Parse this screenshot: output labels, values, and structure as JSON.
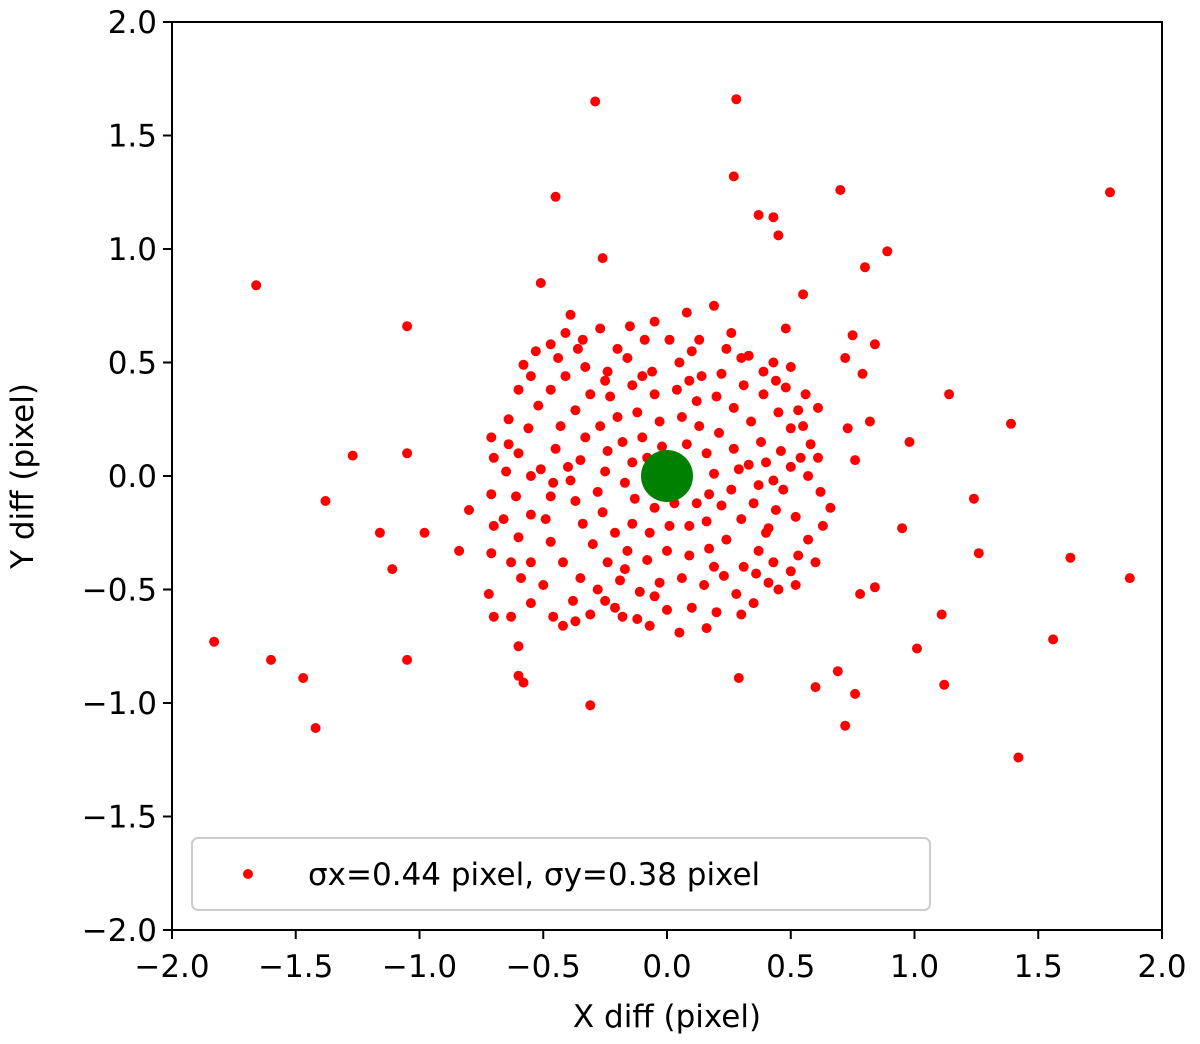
{
  "chart_data": {
    "type": "scatter",
    "title": "",
    "xlabel": "X diff (pixel)",
    "ylabel": "Y diff (pixel)",
    "xlim": [
      -2.0,
      2.0
    ],
    "ylim": [
      -2.0,
      2.0
    ],
    "xticks": [
      -2.0,
      -1.5,
      -1.0,
      -0.5,
      0.0,
      0.5,
      1.0,
      1.5,
      2.0
    ],
    "yticks": [
      -2.0,
      -1.5,
      -1.0,
      -0.5,
      0.0,
      0.5,
      1.0,
      1.5,
      2.0
    ],
    "xtick_labels": [
      "−2.0",
      "−1.5",
      "−1.0",
      "−0.5",
      "0.0",
      "0.5",
      "1.0",
      "1.5",
      "2.0"
    ],
    "ytick_labels": [
      "−2.0",
      "−1.5",
      "−1.0",
      "−0.5",
      "0.0",
      "0.5",
      "1.0",
      "1.5",
      "2.0"
    ],
    "grid": false,
    "legend_position": "lower-left",
    "series": [
      {
        "name": "σx=0.44 pixel, σy=0.38 pixel",
        "color": "#ff0000",
        "marker": "circle",
        "points": [
          [
            -0.29,
            1.65
          ],
          [
            0.28,
            1.66
          ],
          [
            -0.45,
            1.23
          ],
          [
            0.27,
            1.32
          ],
          [
            0.7,
            1.26
          ],
          [
            1.79,
            1.25
          ],
          [
            0.37,
            1.15
          ],
          [
            0.43,
            1.14
          ],
          [
            0.45,
            1.06
          ],
          [
            0.89,
            0.99
          ],
          [
            -0.26,
            0.96
          ],
          [
            0.8,
            0.92
          ],
          [
            -1.66,
            0.84
          ],
          [
            -0.51,
            0.85
          ],
          [
            0.55,
            0.8
          ],
          [
            0.19,
            0.75
          ],
          [
            0.08,
            0.72
          ],
          [
            -0.39,
            0.71
          ],
          [
            -0.05,
            0.68
          ],
          [
            0.48,
            0.65
          ],
          [
            0.26,
            0.63
          ],
          [
            0.75,
            0.62
          ],
          [
            -1.05,
            0.66
          ],
          [
            0.84,
            0.58
          ],
          [
            0.72,
            0.52
          ],
          [
            0.79,
            0.45
          ],
          [
            1.14,
            0.36
          ],
          [
            0.82,
            0.24
          ],
          [
            0.73,
            0.21
          ],
          [
            1.39,
            0.23
          ],
          [
            0.98,
            0.15
          ],
          [
            0.76,
            0.07
          ],
          [
            1.24,
            -0.1
          ],
          [
            0.95,
            -0.23
          ],
          [
            1.26,
            -0.34
          ],
          [
            1.63,
            -0.36
          ],
          [
            1.87,
            -0.45
          ],
          [
            0.84,
            -0.49
          ],
          [
            0.78,
            -0.52
          ],
          [
            1.11,
            -0.61
          ],
          [
            1.56,
            -0.72
          ],
          [
            1.01,
            -0.76
          ],
          [
            0.69,
            -0.86
          ],
          [
            0.6,
            -0.93
          ],
          [
            0.76,
            -0.96
          ],
          [
            1.12,
            -0.92
          ],
          [
            0.72,
            -1.1
          ],
          [
            1.42,
            -1.24
          ],
          [
            -1.27,
            0.09
          ],
          [
            -1.05,
            0.1
          ],
          [
            -1.38,
            -0.11
          ],
          [
            -1.16,
            -0.25
          ],
          [
            -0.98,
            -0.25
          ],
          [
            -1.11,
            -0.41
          ],
          [
            -0.84,
            -0.33
          ],
          [
            -0.8,
            -0.15
          ],
          [
            -1.83,
            -0.73
          ],
          [
            -1.6,
            -0.81
          ],
          [
            -1.47,
            -0.89
          ],
          [
            -1.42,
            -1.11
          ],
          [
            -1.05,
            -0.81
          ],
          [
            -0.31,
            -1.01
          ],
          [
            0.29,
            -0.89
          ],
          [
            -0.58,
            -0.91
          ],
          [
            -0.6,
            -0.88
          ],
          [
            -0.6,
            -0.75
          ],
          [
            -0.63,
            -0.62
          ],
          [
            -0.7,
            -0.62
          ],
          [
            -0.72,
            -0.52
          ],
          [
            -0.71,
            -0.34
          ],
          [
            -0.7,
            -0.22
          ],
          [
            -0.71,
            -0.08
          ],
          [
            -0.7,
            0.08
          ],
          [
            -0.71,
            0.17
          ],
          [
            -0.64,
            0.25
          ],
          [
            -0.6,
            0.38
          ],
          [
            -0.58,
            0.49
          ],
          [
            -0.53,
            0.55
          ],
          [
            -0.47,
            0.58
          ],
          [
            -0.41,
            0.63
          ],
          [
            -0.34,
            0.6
          ],
          [
            -0.27,
            0.65
          ],
          [
            -0.15,
            0.66
          ],
          [
            -0.09,
            0.6
          ],
          [
            0.01,
            0.6
          ],
          [
            0.13,
            0.6
          ],
          [
            0.24,
            0.56
          ],
          [
            0.33,
            0.53
          ],
          [
            0.43,
            0.5
          ],
          [
            0.5,
            0.48
          ],
          [
            0.56,
            0.36
          ],
          [
            0.61,
            0.3
          ],
          [
            0.55,
            0.22
          ],
          [
            0.61,
            0.08
          ],
          [
            0.57,
            0.0
          ],
          [
            0.62,
            -0.07
          ],
          [
            0.52,
            -0.18
          ],
          [
            0.57,
            -0.28
          ],
          [
            0.53,
            -0.35
          ],
          [
            0.5,
            -0.42
          ],
          [
            0.45,
            -0.5
          ],
          [
            0.41,
            -0.47
          ],
          [
            0.35,
            -0.56
          ],
          [
            0.3,
            -0.61
          ],
          [
            0.2,
            -0.6
          ],
          [
            0.1,
            -0.58
          ],
          [
            0.0,
            -0.59
          ],
          [
            -0.05,
            -0.53
          ],
          [
            -0.12,
            -0.63
          ],
          [
            -0.21,
            -0.58
          ],
          [
            -0.31,
            -0.61
          ],
          [
            -0.37,
            -0.64
          ],
          [
            -0.46,
            -0.62
          ],
          [
            -0.55,
            -0.56
          ],
          [
            -0.59,
            -0.45
          ],
          [
            -0.55,
            -0.38
          ],
          [
            -0.6,
            -0.27
          ],
          [
            -0.55,
            -0.17
          ],
          [
            -0.61,
            -0.09
          ],
          [
            -0.55,
            0.0
          ],
          [
            -0.6,
            0.1
          ],
          [
            -0.56,
            0.21
          ],
          [
            -0.52,
            0.31
          ],
          [
            -0.47,
            0.38
          ],
          [
            -0.41,
            0.44
          ],
          [
            -0.33,
            0.48
          ],
          [
            -0.24,
            0.46
          ],
          [
            -0.16,
            0.52
          ],
          [
            -0.06,
            0.46
          ],
          [
            0.05,
            0.5
          ],
          [
            0.14,
            0.44
          ],
          [
            0.22,
            0.45
          ],
          [
            0.31,
            0.4
          ],
          [
            0.39,
            0.36
          ],
          [
            0.45,
            0.28
          ],
          [
            0.5,
            0.21
          ],
          [
            0.46,
            0.11
          ],
          [
            0.5,
            0.04
          ],
          [
            0.47,
            -0.06
          ],
          [
            0.44,
            -0.15
          ],
          [
            0.41,
            -0.23
          ],
          [
            0.37,
            -0.33
          ],
          [
            0.31,
            -0.4
          ],
          [
            0.23,
            -0.44
          ],
          [
            0.15,
            -0.48
          ],
          [
            0.06,
            -0.45
          ],
          [
            -0.03,
            -0.47
          ],
          [
            -0.11,
            -0.51
          ],
          [
            -0.19,
            -0.46
          ],
          [
            -0.28,
            -0.5
          ],
          [
            -0.35,
            -0.45
          ],
          [
            -0.42,
            -0.38
          ],
          [
            -0.47,
            -0.29
          ],
          [
            -0.49,
            -0.19
          ],
          [
            -0.47,
            -0.09
          ],
          [
            -0.51,
            0.03
          ],
          [
            -0.45,
            0.12
          ],
          [
            -0.43,
            0.22
          ],
          [
            -0.37,
            0.29
          ],
          [
            -0.31,
            0.36
          ],
          [
            -0.23,
            0.35
          ],
          [
            -0.14,
            0.4
          ],
          [
            -0.05,
            0.36
          ],
          [
            0.04,
            0.38
          ],
          [
            0.12,
            0.33
          ],
          [
            0.2,
            0.35
          ],
          [
            0.27,
            0.3
          ],
          [
            0.34,
            0.24
          ],
          [
            0.38,
            0.15
          ],
          [
            0.4,
            0.06
          ],
          [
            0.37,
            -0.04
          ],
          [
            0.35,
            -0.12
          ],
          [
            0.3,
            -0.19
          ],
          [
            0.24,
            -0.28
          ],
          [
            0.17,
            -0.32
          ],
          [
            0.09,
            -0.35
          ],
          [
            0.0,
            -0.33
          ],
          [
            -0.08,
            -0.37
          ],
          [
            -0.16,
            -0.33
          ],
          [
            -0.24,
            -0.38
          ],
          [
            -0.3,
            -0.3
          ],
          [
            -0.34,
            -0.21
          ],
          [
            -0.37,
            -0.11
          ],
          [
            -0.39,
            -0.02
          ],
          [
            -0.35,
            0.07
          ],
          [
            -0.33,
            0.17
          ],
          [
            -0.27,
            0.22
          ],
          [
            -0.2,
            0.26
          ],
          [
            -0.12,
            0.28
          ],
          [
            -0.03,
            0.24
          ],
          [
            0.06,
            0.26
          ],
          [
            0.13,
            0.22
          ],
          [
            0.21,
            0.19
          ],
          [
            0.27,
            0.12
          ],
          [
            0.29,
            0.03
          ],
          [
            0.26,
            -0.06
          ],
          [
            0.22,
            -0.13
          ],
          [
            0.16,
            -0.2
          ],
          [
            0.09,
            -0.22
          ],
          [
            0.01,
            -0.22
          ],
          [
            -0.07,
            -0.25
          ],
          [
            -0.14,
            -0.21
          ],
          [
            -0.21,
            -0.25
          ],
          [
            -0.26,
            -0.16
          ],
          [
            -0.28,
            -0.07
          ],
          [
            -0.25,
            0.02
          ],
          [
            -0.24,
            0.11
          ],
          [
            -0.18,
            0.15
          ],
          [
            -0.1,
            0.17
          ],
          [
            -0.02,
            0.13
          ],
          [
            0.08,
            0.14
          ],
          [
            0.16,
            0.1
          ],
          [
            0.19,
            0.01
          ],
          [
            0.17,
            -0.08
          ],
          [
            0.12,
            -0.12
          ],
          [
            0.03,
            -0.12
          ],
          [
            -0.05,
            -0.14
          ],
          [
            -0.13,
            -0.1
          ],
          [
            -0.17,
            -0.03
          ],
          [
            -0.14,
            0.06
          ],
          [
            -0.08,
            0.08
          ],
          [
            -0.25,
            -0.55
          ],
          [
            -0.18,
            -0.62
          ],
          [
            -0.07,
            -0.66
          ],
          [
            0.05,
            -0.69
          ],
          [
            0.16,
            -0.67
          ],
          [
            -0.42,
            -0.66
          ],
          [
            -0.5,
            -0.48
          ],
          [
            0.52,
            -0.48
          ],
          [
            0.6,
            -0.38
          ],
          [
            0.63,
            -0.22
          ],
          [
            0.66,
            -0.14
          ],
          [
            0.58,
            0.14
          ],
          [
            0.53,
            0.29
          ],
          [
            0.48,
            0.39
          ],
          [
            0.39,
            0.46
          ],
          [
            -0.65,
            0.02
          ],
          [
            -0.66,
            -0.19
          ],
          [
            -0.64,
            0.14
          ],
          [
            -0.63,
            -0.38
          ],
          [
            0.4,
            -0.25
          ],
          [
            0.43,
            -0.38
          ],
          [
            -0.44,
            0.52
          ],
          [
            -0.36,
            0.56
          ],
          [
            -0.2,
            0.56
          ],
          [
            0.1,
            0.55
          ],
          [
            0.3,
            0.52
          ],
          [
            -0.55,
            0.44
          ],
          [
            0.54,
            0.08
          ],
          [
            -0.38,
            -0.55
          ],
          [
            0.28,
            -0.52
          ],
          [
            0.19,
            -0.4
          ],
          [
            -0.17,
            -0.41
          ],
          [
            -0.4,
            0.04
          ],
          [
            0.33,
            0.05
          ],
          [
            0.09,
            0.42
          ],
          [
            -0.1,
            0.44
          ],
          [
            0.36,
            -0.43
          ],
          [
            -0.25,
            0.42
          ],
          [
            0.44,
            0.42
          ],
          [
            -0.46,
            -0.03
          ],
          [
            0.43,
            -0.02
          ]
        ]
      },
      {
        "name": "",
        "color": "#008000",
        "marker": "circle",
        "size": "large",
        "points": [
          [
            0.0,
            0.0
          ]
        ]
      }
    ]
  }
}
